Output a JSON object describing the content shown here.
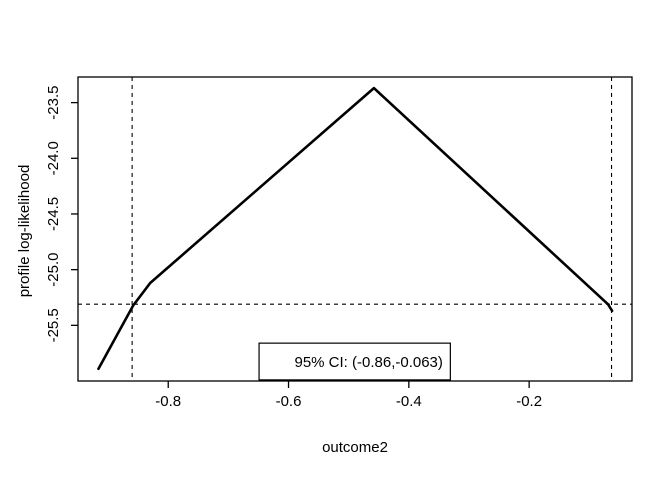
{
  "figure": {
    "background": "#ffffff",
    "foreground": "#000000"
  },
  "chart_data": {
    "type": "line",
    "title": "",
    "xlabel": "outcome2",
    "ylabel": "profile log-likelihood",
    "xlim": [
      -0.95,
      -0.029
    ],
    "ylim": [
      -26.0,
      -23.27
    ],
    "x_ticks": [
      -0.8,
      -0.6,
      -0.4,
      -0.2
    ],
    "x_tick_labels": [
      "-0.8",
      "-0.6",
      "-0.4",
      "-0.2"
    ],
    "y_ticks": [
      -23.5,
      -24.0,
      -24.5,
      -25.0,
      -25.5
    ],
    "y_tick_labels": [
      "-23.5",
      "-24.0",
      "-24.5",
      "-25.0",
      "-25.5"
    ],
    "grid": false,
    "series": [
      {
        "name": "profile log-likelihood curve",
        "color": "#000000",
        "line_width": 2.6,
        "points": [
          [
            -0.916,
            -25.89
          ],
          [
            -0.858,
            -25.32
          ],
          [
            -0.83,
            -25.12
          ],
          [
            -0.458,
            -23.37
          ],
          [
            -0.069,
            -25.31
          ],
          [
            -0.062,
            -25.37
          ]
        ]
      }
    ],
    "peak": {
      "x": -0.458,
      "y": -23.37
    },
    "reference_lines": {
      "style": "dashed",
      "color": "#000000",
      "vertical": [
        -0.86,
        -0.063
      ],
      "horizontal": [
        -25.31
      ]
    },
    "ci_annotation": {
      "label": "95% CI: (-0.86,-0.063)",
      "level": "95%",
      "lower": -0.86,
      "upper": -0.063,
      "box_x": [
        -0.649,
        -0.331
      ],
      "box_y": [
        -25.99,
        -25.66
      ]
    },
    "legend_position": "bottom-center-inside"
  }
}
